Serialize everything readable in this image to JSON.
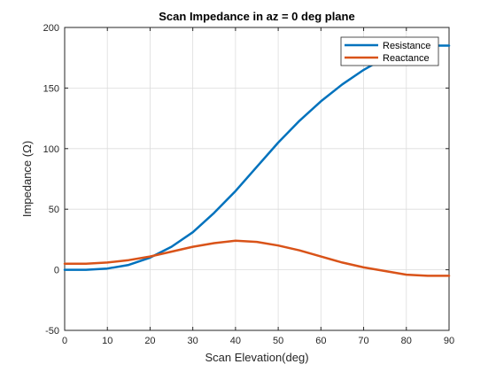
{
  "chart_data": {
    "type": "line",
    "title": "Scan Impedance in az = 0 deg plane",
    "xlabel": "Scan Elevation(deg)",
    "ylabel": "Impedance  (Ω)",
    "xlim": [
      0,
      90
    ],
    "ylim": [
      -50,
      200
    ],
    "xticks": [
      0,
      10,
      20,
      30,
      40,
      50,
      60,
      70,
      80,
      90
    ],
    "yticks": [
      -50,
      0,
      50,
      100,
      150,
      200
    ],
    "grid": true,
    "legend_position": "top-right",
    "series": [
      {
        "name": "Resistance",
        "color": "#0072BD",
        "x": [
          0,
          5,
          10,
          15,
          20,
          25,
          30,
          35,
          40,
          45,
          50,
          55,
          60,
          65,
          70,
          75,
          80,
          85,
          90
        ],
        "y": [
          0,
          0,
          1,
          4,
          10,
          19,
          31,
          47,
          65,
          85,
          105,
          123,
          139,
          153,
          165,
          175,
          182,
          185,
          185
        ]
      },
      {
        "name": "Reactance",
        "color": "#D95319",
        "x": [
          0,
          5,
          10,
          15,
          20,
          25,
          30,
          35,
          40,
          45,
          50,
          55,
          60,
          65,
          70,
          75,
          80,
          85,
          90
        ],
        "y": [
          5,
          5,
          6,
          8,
          11,
          15,
          19,
          22,
          24,
          23,
          20,
          16,
          11,
          6,
          2,
          -1,
          -4,
          -5,
          -5
        ]
      }
    ]
  }
}
